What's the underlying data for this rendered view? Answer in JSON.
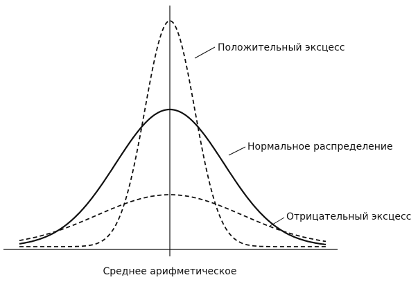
{
  "labels": {
    "positive": "Положительный эксцесс",
    "normal": "Нормальное распределение",
    "negative": "Отрицательный эксцесс",
    "mean": "Среднее арифметическое"
  }
}
